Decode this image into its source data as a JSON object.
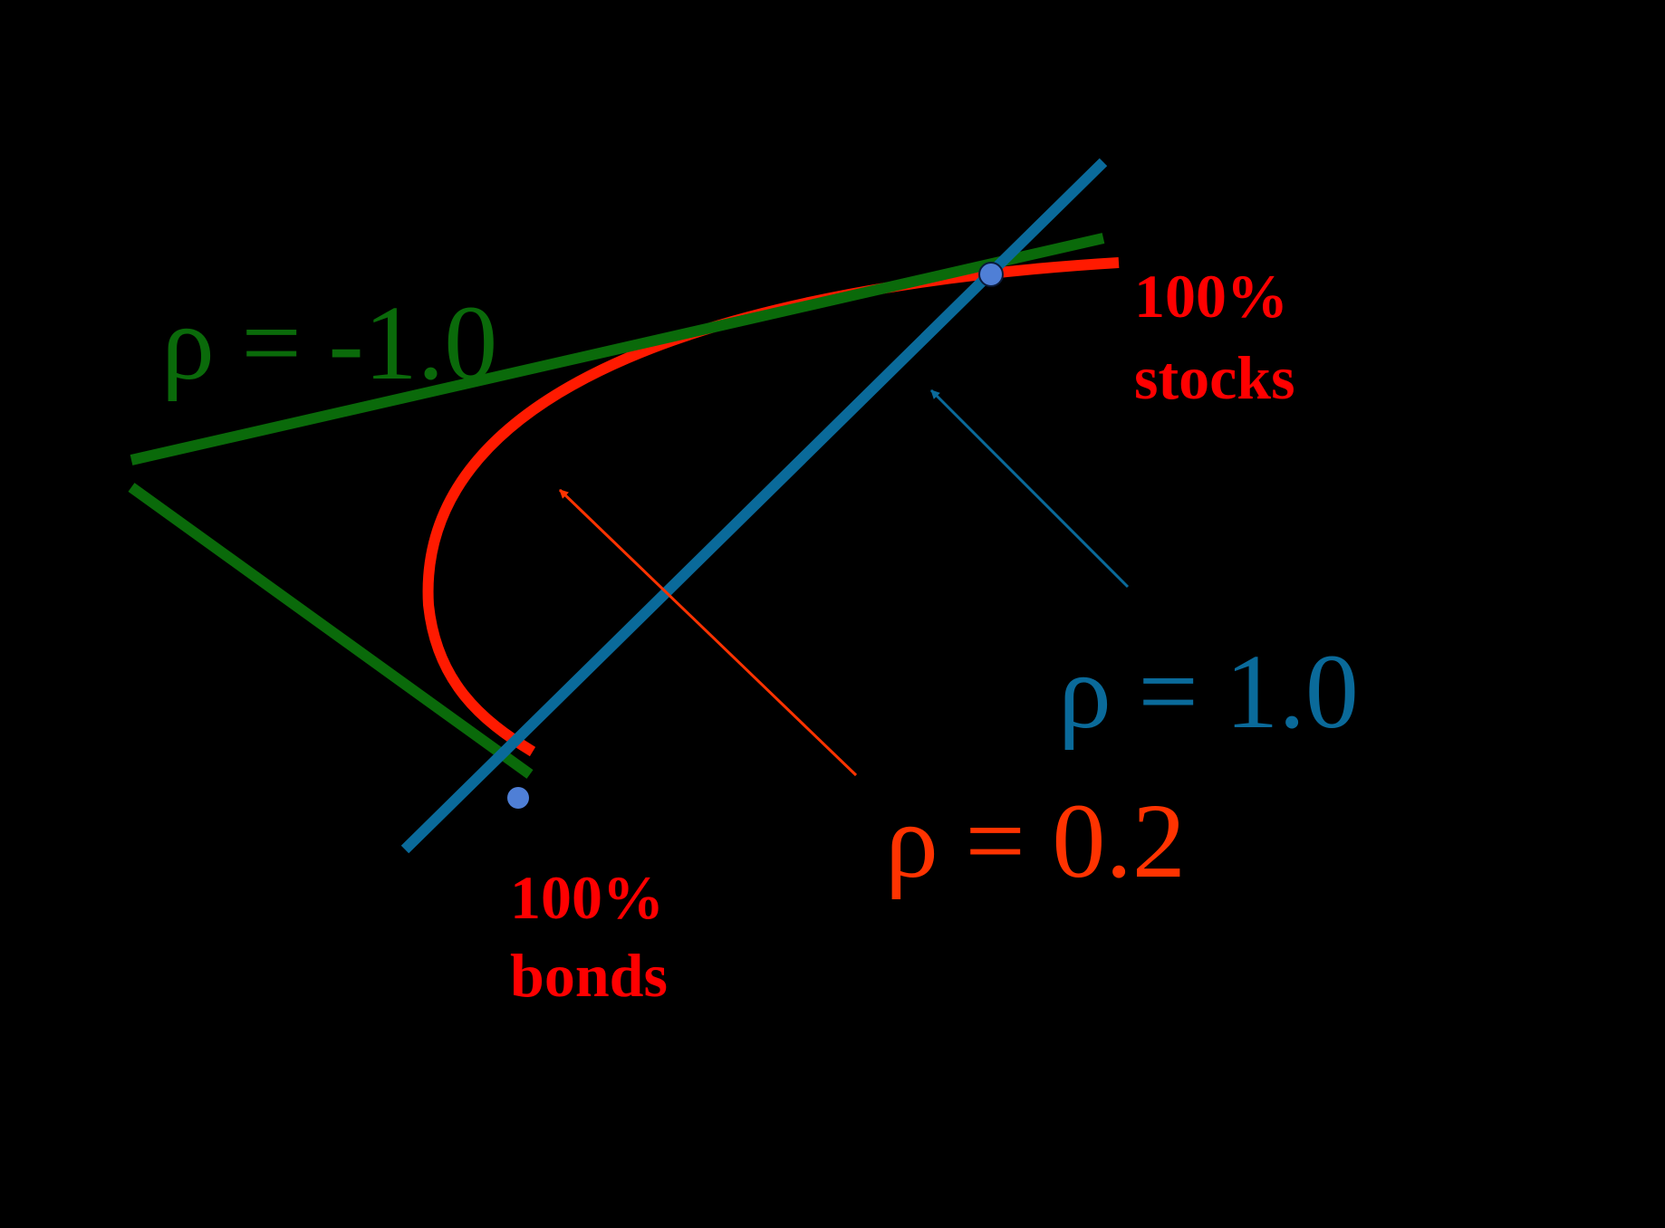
{
  "colors": {
    "background": "#000000",
    "rho_neg1": "#0a6a0a",
    "rho_pos1": "#0a6a9a",
    "rho_02": "#ff1a00",
    "rho_02_label": "#ff3300",
    "asset_label": "#ff0000",
    "endpoint_marker": "#4f7fd6"
  },
  "labels": {
    "rho_neg1": "ρ = -1.0",
    "rho_pos1": "ρ = 1.0",
    "rho_02": "ρ = 0.2",
    "stocks_line1": "100%",
    "stocks_line2": "stocks",
    "bonds_line1": "100%",
    "bonds_line2": "bonds"
  }
}
